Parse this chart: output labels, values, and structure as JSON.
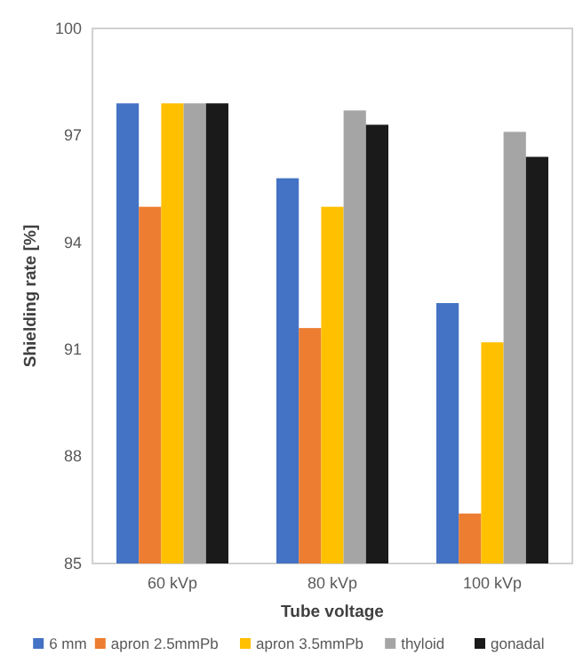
{
  "chart_data": {
    "type": "bar",
    "ylabel": "Shielding rate [%]",
    "xlabel": "Tube voltage",
    "categories": [
      "60 kVp",
      "80 kVp",
      "100 kVp"
    ],
    "series": [
      {
        "name": "6 mm",
        "color": "#4472c4",
        "values": [
          97.9,
          95.8,
          92.3
        ]
      },
      {
        "name": "apron 2.5mmPb",
        "color": "#ed7d31",
        "values": [
          95.0,
          91.6,
          86.4
        ]
      },
      {
        "name": "apron 3.5mmPb",
        "color": "#ffc000",
        "values": [
          97.9,
          95.0,
          91.2
        ]
      },
      {
        "name": "thyloid",
        "color": "#a5a5a5",
        "values": [
          97.9,
          97.7,
          97.1
        ]
      },
      {
        "name": "gonadal",
        "color": "#1a1a1a",
        "values": [
          97.9,
          97.3,
          96.4
        ]
      }
    ],
    "ylim": [
      85,
      100
    ],
    "yticks": [
      85,
      88,
      91,
      94,
      97,
      100
    ],
    "grid": false,
    "legend": "bottom"
  }
}
